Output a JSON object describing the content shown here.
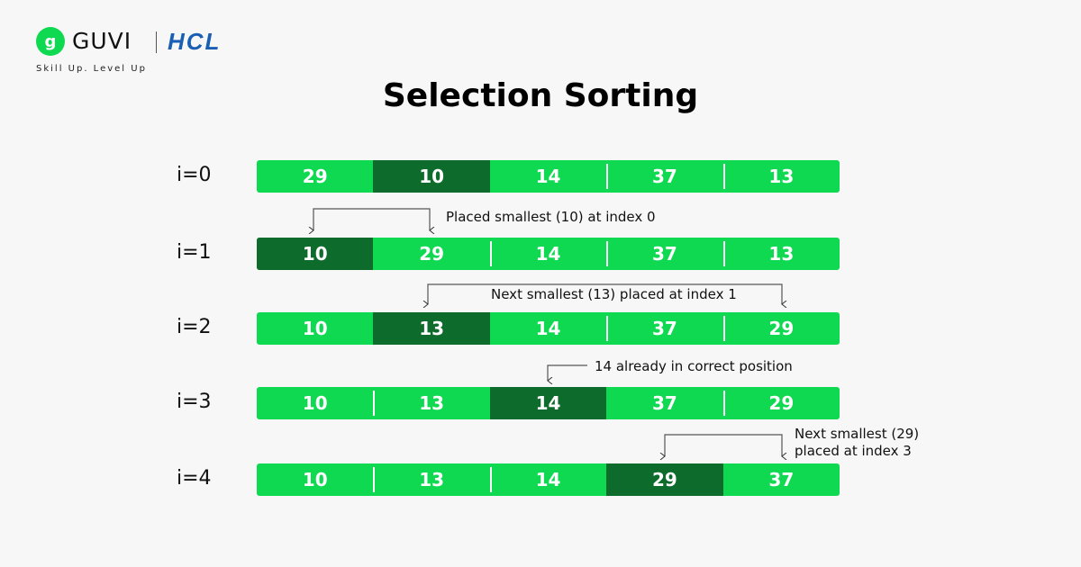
{
  "brand": {
    "name": "GUVI",
    "partner": "HCL",
    "tagline": "Skill Up. Level Up",
    "logo_icon": "guvi-g-logo"
  },
  "title": "Selection Sorting",
  "colors": {
    "cell": "#0fd851",
    "selected_cell": "#0d6b2c"
  },
  "rows": [
    {
      "label": "i=0",
      "values": [
        "29",
        "10",
        "14",
        "37",
        "13"
      ],
      "selected": 1
    },
    {
      "label": "i=1",
      "values": [
        "10",
        "29",
        "14",
        "37",
        "13"
      ],
      "selected": 0
    },
    {
      "label": "i=2",
      "values": [
        "10",
        "13",
        "14",
        "37",
        "29"
      ],
      "selected": 1
    },
    {
      "label": "i=3",
      "values": [
        "10",
        "13",
        "14",
        "37",
        "29"
      ],
      "selected": 2
    },
    {
      "label": "i=4",
      "values": [
        "10",
        "13",
        "14",
        "29",
        "37"
      ],
      "selected": 3
    }
  ],
  "notes": {
    "step1": "Placed smallest (10) at index 0",
    "step2": "Next smallest (13) placed at index 1",
    "step3": "14 already in correct position",
    "step4_line1": "Next smallest (29)",
    "step4_line2": "placed at index 3"
  }
}
